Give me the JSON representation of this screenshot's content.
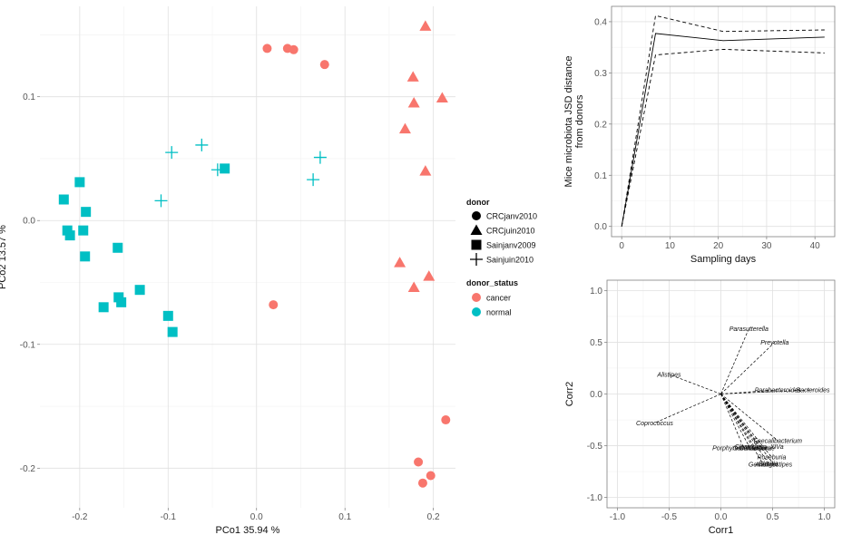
{
  "colors": {
    "cancer": "#F8766D",
    "normal": "#00BFC4",
    "panel": "#EBEBEB",
    "grid_major": "#E0E0E0",
    "grid_minor": "#F2F2F2",
    "line": "#000000"
  },
  "chart_data": [
    {
      "type": "scatter",
      "xlabel": "PCo1 35.94 %",
      "ylabel": "PCo2 13.57 %",
      "xlim": [
        -0.245,
        0.225
      ],
      "ylim": [
        -0.232,
        0.173
      ],
      "x_ticks": [
        -0.2,
        -0.1,
        0.0,
        0.1,
        0.2
      ],
      "x_tick_labels": [
        "-0.2",
        "-0.1",
        "0.0",
        "0.1",
        "0.2"
      ],
      "y_ticks": [
        -0.2,
        -0.1,
        0.0,
        0.1
      ],
      "y_tick_labels": [
        "-0.2",
        "-0.1",
        "0.0",
        "0.1"
      ],
      "grid": true,
      "legend": {
        "placement": "right",
        "donor_title": "donor",
        "donor_items": [
          {
            "label": "CRCjanv2010",
            "shape": "circle"
          },
          {
            "label": "CRCjuin2010",
            "shape": "triangle"
          },
          {
            "label": "Sainjanv2009",
            "shape": "square"
          },
          {
            "label": "Sainjuin2010",
            "shape": "cross"
          }
        ],
        "status_title": "donor_status",
        "status_items": [
          {
            "label": "cancer",
            "color": "#F8766D"
          },
          {
            "label": "normal",
            "color": "#00BFC4"
          }
        ]
      },
      "points": [
        {
          "x": 0.012,
          "y": 0.139,
          "donor": "CRCjanv2010",
          "status": "cancer"
        },
        {
          "x": 0.035,
          "y": 0.139,
          "donor": "CRCjanv2010",
          "status": "cancer"
        },
        {
          "x": 0.042,
          "y": 0.138,
          "donor": "CRCjanv2010",
          "status": "cancer"
        },
        {
          "x": 0.077,
          "y": 0.126,
          "donor": "CRCjanv2010",
          "status": "cancer"
        },
        {
          "x": 0.019,
          "y": -0.068,
          "donor": "CRCjanv2010",
          "status": "cancer"
        },
        {
          "x": 0.214,
          "y": -0.161,
          "donor": "CRCjanv2010",
          "status": "cancer"
        },
        {
          "x": 0.183,
          "y": -0.195,
          "donor": "CRCjanv2010",
          "status": "cancer"
        },
        {
          "x": 0.197,
          "y": -0.206,
          "donor": "CRCjanv2010",
          "status": "cancer"
        },
        {
          "x": 0.188,
          "y": -0.212,
          "donor": "CRCjanv2010",
          "status": "cancer"
        },
        {
          "x": 0.191,
          "y": 0.157,
          "donor": "CRCjuin2010",
          "status": "cancer"
        },
        {
          "x": 0.177,
          "y": 0.116,
          "donor": "CRCjuin2010",
          "status": "cancer"
        },
        {
          "x": 0.21,
          "y": 0.099,
          "donor": "CRCjuin2010",
          "status": "cancer"
        },
        {
          "x": 0.178,
          "y": 0.095,
          "donor": "CRCjuin2010",
          "status": "cancer"
        },
        {
          "x": 0.168,
          "y": 0.074,
          "donor": "CRCjuin2010",
          "status": "cancer"
        },
        {
          "x": 0.191,
          "y": 0.04,
          "donor": "CRCjuin2010",
          "status": "cancer"
        },
        {
          "x": 0.162,
          "y": -0.034,
          "donor": "CRCjuin2010",
          "status": "cancer"
        },
        {
          "x": 0.195,
          "y": -0.045,
          "donor": "CRCjuin2010",
          "status": "cancer"
        },
        {
          "x": 0.178,
          "y": -0.054,
          "donor": "CRCjuin2010",
          "status": "cancer"
        },
        {
          "x": -0.218,
          "y": 0.017,
          "donor": "Sainjanv2009",
          "status": "normal"
        },
        {
          "x": -0.2,
          "y": 0.031,
          "donor": "Sainjanv2009",
          "status": "normal"
        },
        {
          "x": -0.193,
          "y": 0.007,
          "donor": "Sainjanv2009",
          "status": "normal"
        },
        {
          "x": -0.214,
          "y": -0.008,
          "donor": "Sainjanv2009",
          "status": "normal"
        },
        {
          "x": -0.211,
          "y": -0.012,
          "donor": "Sainjanv2009",
          "status": "normal"
        },
        {
          "x": -0.196,
          "y": -0.008,
          "donor": "Sainjanv2009",
          "status": "normal"
        },
        {
          "x": -0.194,
          "y": -0.029,
          "donor": "Sainjanv2009",
          "status": "normal"
        },
        {
          "x": -0.157,
          "y": -0.022,
          "donor": "Sainjanv2009",
          "status": "normal"
        },
        {
          "x": -0.173,
          "y": -0.07,
          "donor": "Sainjanv2009",
          "status": "normal"
        },
        {
          "x": -0.156,
          "y": -0.062,
          "donor": "Sainjanv2009",
          "status": "normal"
        },
        {
          "x": -0.153,
          "y": -0.066,
          "donor": "Sainjanv2009",
          "status": "normal"
        },
        {
          "x": -0.132,
          "y": -0.056,
          "donor": "Sainjanv2009",
          "status": "normal"
        },
        {
          "x": -0.1,
          "y": -0.077,
          "donor": "Sainjanv2009",
          "status": "normal"
        },
        {
          "x": -0.095,
          "y": -0.09,
          "donor": "Sainjanv2009",
          "status": "normal"
        },
        {
          "x": -0.036,
          "y": 0.042,
          "donor": "Sainjanv2009",
          "status": "normal"
        },
        {
          "x": -0.096,
          "y": 0.055,
          "donor": "Sainjuin2010",
          "status": "normal"
        },
        {
          "x": -0.062,
          "y": 0.061,
          "donor": "Sainjuin2010",
          "status": "normal"
        },
        {
          "x": -0.044,
          "y": 0.041,
          "donor": "Sainjuin2010",
          "status": "normal"
        },
        {
          "x": -0.108,
          "y": 0.016,
          "donor": "Sainjuin2010",
          "status": "normal"
        },
        {
          "x": 0.072,
          "y": 0.051,
          "donor": "Sainjuin2010",
          "status": "normal"
        },
        {
          "x": 0.064,
          "y": 0.033,
          "donor": "Sainjuin2010",
          "status": "normal"
        }
      ]
    },
    {
      "type": "line",
      "xlabel": "Sampling days",
      "ylabel": "Mice microbiota JSD distance\nfrom donors",
      "xlim": [
        -2.1,
        44.1
      ],
      "ylim": [
        -0.02,
        0.43
      ],
      "x_ticks": [
        0,
        10,
        20,
        30,
        40
      ],
      "x_tick_labels": [
        "0",
        "10",
        "20",
        "30",
        "40"
      ],
      "y_ticks": [
        0.0,
        0.1,
        0.2,
        0.3,
        0.4
      ],
      "y_tick_labels": [
        "0.0",
        "0.1",
        "0.2",
        "0.3",
        "0.4"
      ],
      "grid": true,
      "x": [
        0,
        7,
        21,
        42
      ],
      "series": [
        {
          "style": "solid",
          "values": [
            0.0,
            0.377,
            0.363,
            0.37
          ]
        },
        {
          "style": "dashed",
          "values": [
            0.0,
            0.412,
            0.381,
            0.384
          ]
        },
        {
          "style": "dashed",
          "values": [
            0.0,
            0.335,
            0.346,
            0.339
          ]
        }
      ]
    },
    {
      "type": "biplot",
      "xlabel": "Corr1",
      "ylabel": "Corr2",
      "xlim": [
        -1.1,
        1.1
      ],
      "ylim": [
        -1.1,
        1.1
      ],
      "x_ticks": [
        -1.0,
        -0.5,
        0.0,
        0.5,
        1.0
      ],
      "x_tick_labels": [
        "-1.0",
        "-0.5",
        "0.0",
        "0.5",
        "1.0"
      ],
      "y_ticks": [
        -1.0,
        -0.5,
        0.0,
        0.5,
        1.0
      ],
      "y_tick_labels": [
        "-1.0",
        "-0.5",
        "0.0",
        "0.5",
        "1.0"
      ],
      "grid": true,
      "vectors": [
        {
          "label": "Parasutterella",
          "x": 0.27,
          "y": 0.63
        },
        {
          "label": "Prevotella",
          "x": 0.52,
          "y": 0.5
        },
        {
          "label": "Alistipes",
          "x": -0.5,
          "y": 0.19
        },
        {
          "label": "Parabacteroides",
          "x": 0.55,
          "y": 0.04
        },
        {
          "label": "Bacteroides",
          "x": 0.89,
          "y": 0.04
        },
        {
          "label": "Coprococcus",
          "x": -0.64,
          "y": -0.28
        },
        {
          "label": "Faecalibacterium",
          "x": 0.55,
          "y": -0.45
        },
        {
          "label": "Porphyromonadaceae",
          "x": 0.22,
          "y": -0.52
        },
        {
          "label": "Oscillibacter",
          "x": 0.28,
          "y": -0.52
        },
        {
          "label": "Clostridium",
          "x": 0.33,
          "y": -0.52
        },
        {
          "label": "Clostridium_XIVa",
          "x": 0.37,
          "y": -0.51
        },
        {
          "label": "Roseburia",
          "x": 0.49,
          "y": -0.61
        },
        {
          "label": "Gemmiger",
          "x": 0.41,
          "y": -0.68
        },
        {
          "label": "Blautia",
          "x": 0.46,
          "y": -0.67
        },
        {
          "label": "Anaerostipes",
          "x": 0.51,
          "y": -0.68
        }
      ]
    }
  ]
}
